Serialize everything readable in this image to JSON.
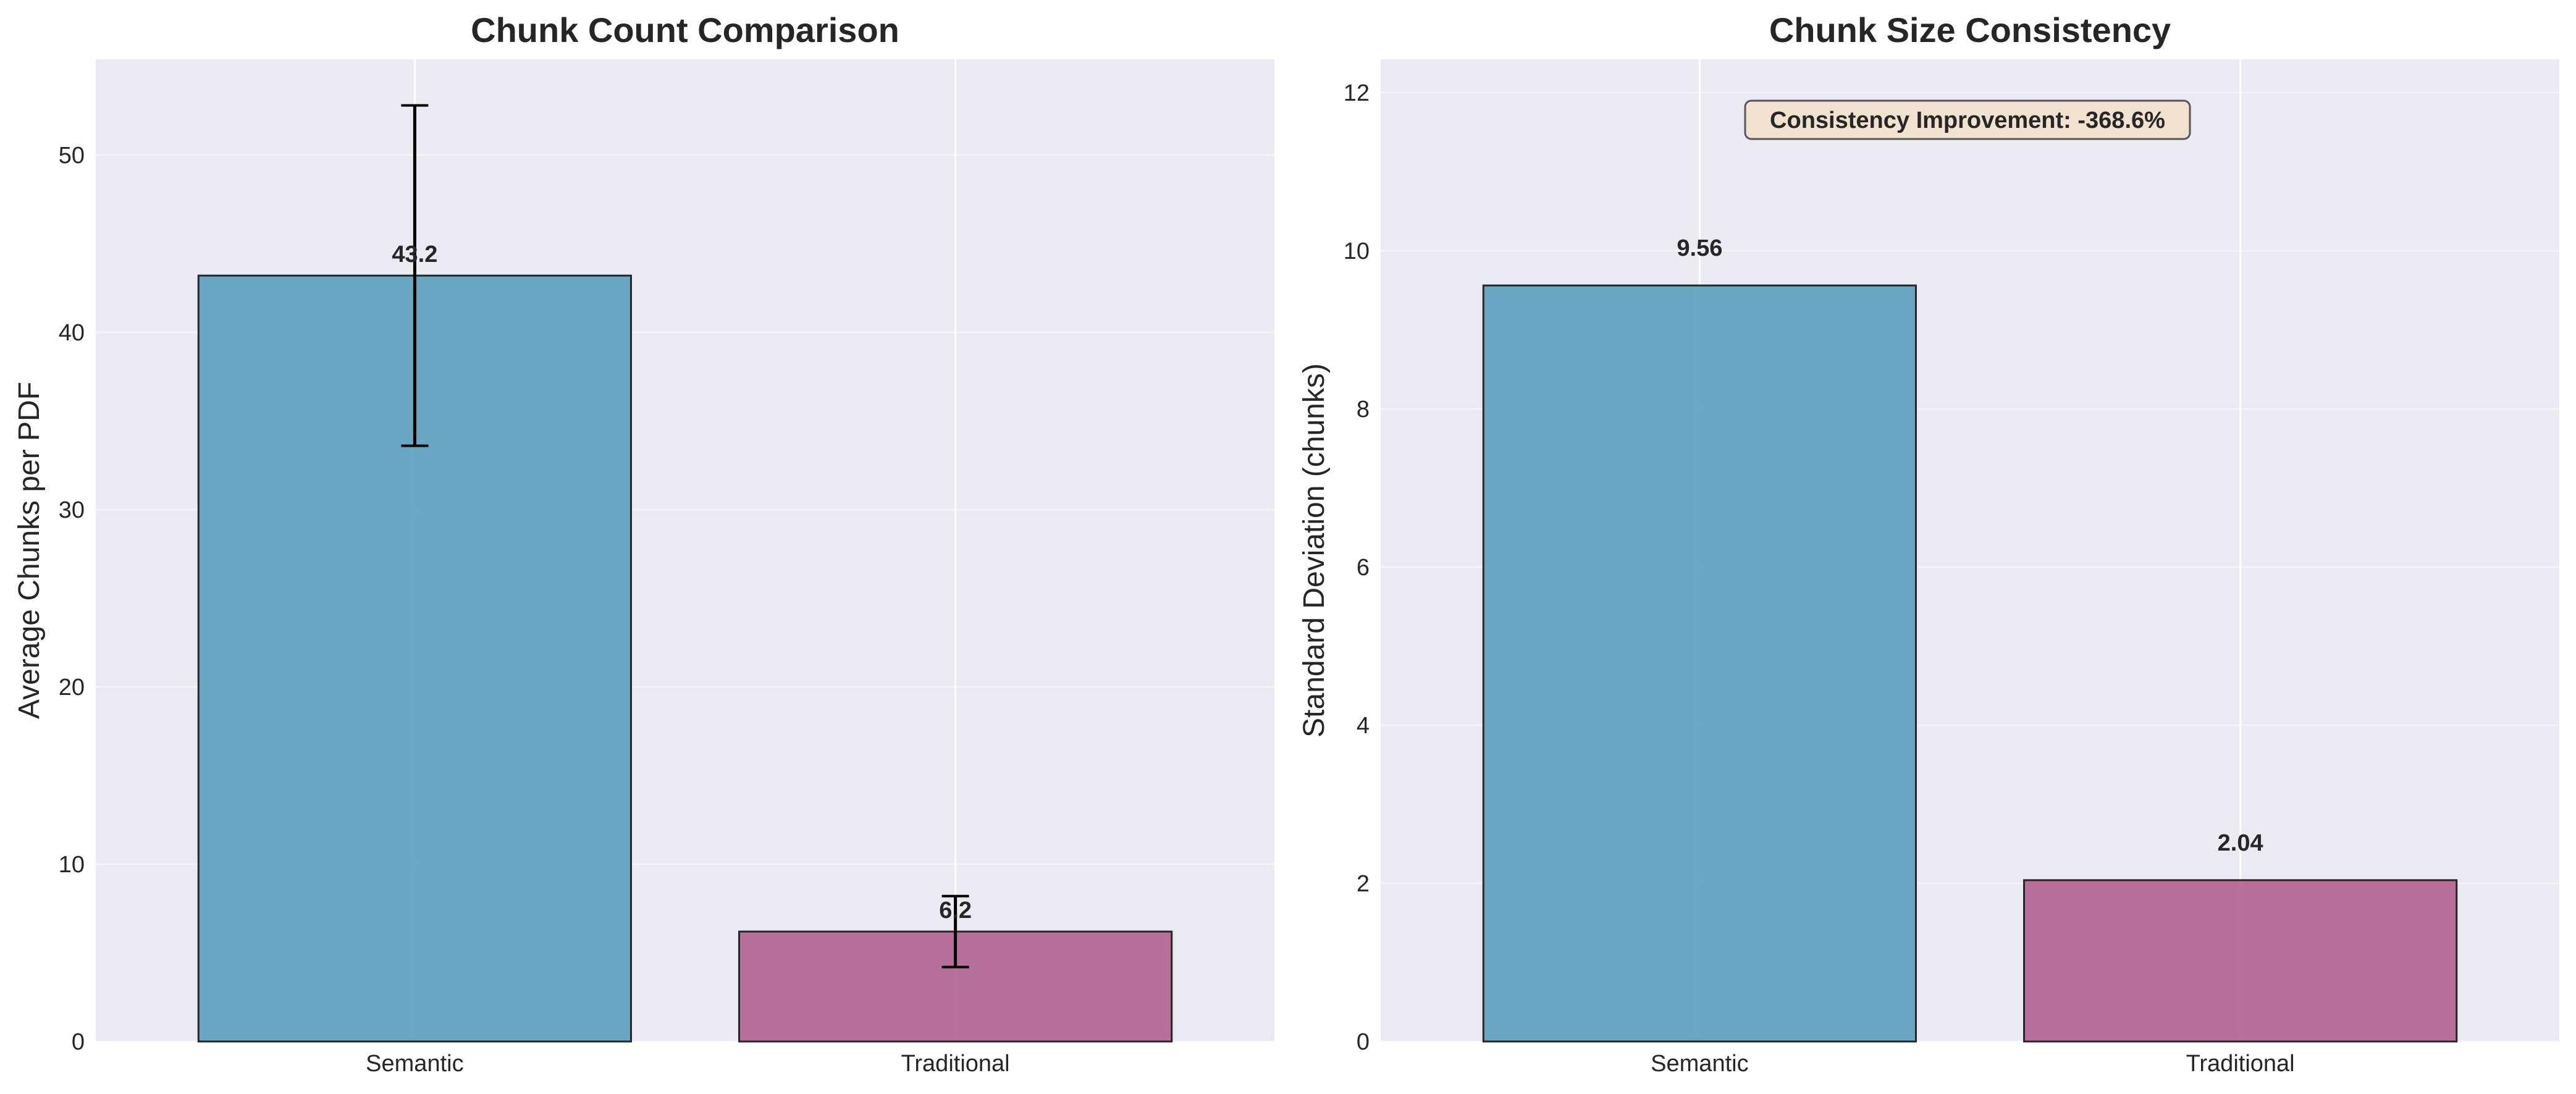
{
  "chart_data": [
    {
      "type": "bar",
      "title": "Chunk Count Comparison",
      "xlabel": "",
      "ylabel": "Average Chunks per PDF",
      "categories": [
        "Semantic",
        "Traditional"
      ],
      "values": [
        43.2,
        6.2
      ],
      "value_labels": [
        "43.2",
        "6.2"
      ],
      "error": [
        9.6,
        2.0
      ],
      "ylim": [
        0,
        55.4
      ],
      "yticks": [
        0,
        10,
        20,
        30,
        40,
        50
      ],
      "grid": true,
      "colors": [
        "#5b9ebe",
        "#b1638f"
      ]
    },
    {
      "type": "bar",
      "title": "Chunk Size Consistency",
      "xlabel": "",
      "ylabel": "Standard Deviation (chunks)",
      "categories": [
        "Semantic",
        "Traditional"
      ],
      "values": [
        9.56,
        2.04
      ],
      "value_labels": [
        "9.56",
        "2.04"
      ],
      "ylim": [
        0,
        12.42
      ],
      "yticks": [
        0,
        2,
        4,
        6,
        8,
        10,
        12
      ],
      "grid": true,
      "colors": [
        "#5b9ebe",
        "#b1638f"
      ],
      "annotation": "Consistency Improvement: -368.6%"
    }
  ]
}
